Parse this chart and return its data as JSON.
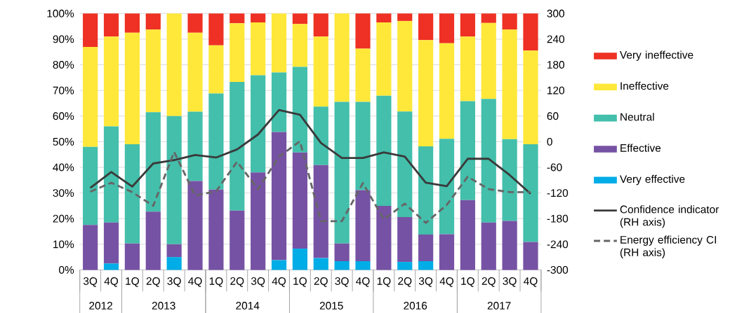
{
  "chart_data": {
    "type": "bar",
    "stacked": true,
    "categories": [
      "3Q",
      "4Q",
      "1Q",
      "2Q",
      "3Q",
      "4Q",
      "1Q",
      "2Q",
      "3Q",
      "4Q",
      "1Q",
      "2Q",
      "3Q",
      "4Q",
      "1Q",
      "2Q",
      "3Q",
      "4Q",
      "1Q",
      "2Q",
      "3Q",
      "4Q"
    ],
    "series": [
      {
        "name": "Very effective",
        "color": "#00ade6",
        "values": [
          0,
          2.5,
          0,
          0,
          5,
          0,
          0,
          0,
          0,
          3.8,
          8.3,
          4.6,
          3.4,
          3.4,
          0,
          3.1,
          3.4,
          0,
          0,
          0,
          0,
          0
        ]
      },
      {
        "name": "Effective",
        "color": "#7652a4",
        "values": [
          17.5,
          16,
          10.3,
          22.7,
          5,
          34.7,
          31.3,
          23.1,
          38,
          50,
          37.5,
          36.3,
          6.9,
          27.7,
          25,
          17.5,
          10.4,
          13.9,
          27.2,
          18.5,
          19.1,
          10.9
        ]
      },
      {
        "name": "Neutral",
        "color": "#43bfab",
        "values": [
          30.5,
          37.5,
          38.7,
          38.8,
          50,
          27,
          37.5,
          50.2,
          37.9,
          23.2,
          33.4,
          22.8,
          55.2,
          34.4,
          42.9,
          41.2,
          34.4,
          37.2,
          38.6,
          48.2,
          31.9,
          38.1
        ]
      },
      {
        "name": "Ineffective",
        "color": "#ffe83a",
        "values": [
          39,
          35,
          43.5,
          32.2,
          40,
          30.8,
          18.8,
          22.9,
          20.6,
          23,
          16.7,
          27.3,
          34.5,
          20.8,
          28.6,
          35.3,
          41.4,
          37.3,
          25.2,
          29.6,
          42.7,
          36.5
        ]
      },
      {
        "name": "Very ineffective",
        "color": "#ee3124",
        "values": [
          13,
          9,
          7.5,
          6.3,
          0,
          7.5,
          12.4,
          3.8,
          3.5,
          0,
          4.1,
          9,
          0,
          13.7,
          3.5,
          2.9,
          10.4,
          11.6,
          9,
          3.7,
          6.3,
          14.5
        ]
      },
      {
        "name": "Confidence indicator (RH axis)",
        "type": "line",
        "axis": "y2",
        "line_style": "solid",
        "color": "#3a3a3a",
        "values": [
          -108,
          -71,
          -105,
          -51,
          -43,
          -31,
          -37,
          -18,
          17,
          74,
          63,
          -3,
          -38,
          -38,
          -25,
          -35,
          -96,
          -104,
          -40,
          -40,
          -78,
          -122
        ]
      },
      {
        "name": "Energy efficiency CI (RH axis)",
        "type": "line",
        "axis": "y2",
        "line_style": "dashed",
        "color": "#666666",
        "values": [
          -117,
          -96,
          -118,
          -150,
          -24,
          -126,
          -116,
          -47,
          -111,
          -35,
          1,
          -186,
          -186,
          -97,
          -182,
          -145,
          -190,
          -148,
          -82,
          -111,
          -118,
          -118
        ]
      }
    ],
    "ylim": [
      0,
      100
    ],
    "yticks": [
      {
        "value": 0,
        "label": "0%"
      },
      {
        "value": 10,
        "label": "10%"
      },
      {
        "value": 20,
        "label": "20%"
      },
      {
        "value": 30,
        "label": "30%"
      },
      {
        "value": 40,
        "label": "40%"
      },
      {
        "value": 50,
        "label": "50%"
      },
      {
        "value": 60,
        "label": "60%"
      },
      {
        "value": 70,
        "label": "70%"
      },
      {
        "value": 80,
        "label": "80%"
      },
      {
        "value": 90,
        "label": "90%"
      },
      {
        "value": 100,
        "label": "100%"
      }
    ],
    "y2lim": [
      -300,
      300
    ],
    "y2ticks": [
      -300,
      -240,
      -180,
      -120,
      -60,
      0,
      60,
      120,
      180,
      240,
      300
    ],
    "annotations": [
      "2012",
      "2013",
      "2014",
      "2015",
      "2016",
      "2017"
    ],
    "grid": "y",
    "legend": "right",
    "marker": "none"
  }
}
